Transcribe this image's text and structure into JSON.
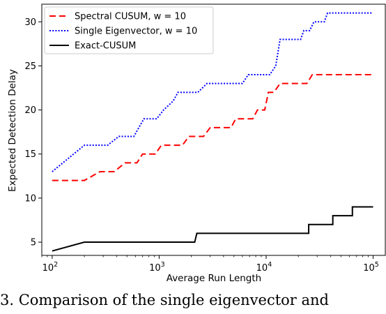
{
  "chart_data": {
    "type": "line",
    "title": "",
    "xlabel": "Average Run Length",
    "ylabel": "Expected Detection Delay",
    "x_scale": "log",
    "xlim": [
      80,
      130000
    ],
    "ylim": [
      3.5,
      32
    ],
    "x_ticks": [
      100,
      1000,
      10000,
      100000
    ],
    "x_tick_labels": [
      {
        "base": "10",
        "exp": "2"
      },
      {
        "base": "10",
        "exp": "3"
      },
      {
        "base": "10",
        "exp": "4"
      },
      {
        "base": "10",
        "exp": "5"
      }
    ],
    "y_ticks": [
      5,
      10,
      15,
      20,
      25,
      30
    ],
    "y_tick_labels": [
      "5",
      "10",
      "15",
      "20",
      "25",
      "30"
    ],
    "grid": false,
    "legend_position": "top-left",
    "series": [
      {
        "name": "Spectral CUSUM, w = 10",
        "color": "#ff0000",
        "style": "dashed",
        "points": [
          [
            100,
            12
          ],
          [
            200,
            12
          ],
          [
            280,
            13
          ],
          [
            380,
            13
          ],
          [
            480,
            14
          ],
          [
            620,
            14
          ],
          [
            700,
            15
          ],
          [
            920,
            15
          ],
          [
            1050,
            16
          ],
          [
            1650,
            16
          ],
          [
            1900,
            17
          ],
          [
            2600,
            17
          ],
          [
            3000,
            18
          ],
          [
            4700,
            18
          ],
          [
            5200,
            19
          ],
          [
            7500,
            19
          ],
          [
            8300,
            20
          ],
          [
            9700,
            20
          ],
          [
            10500,
            22
          ],
          [
            11800,
            22
          ],
          [
            13500,
            23
          ],
          [
            24000,
            23
          ],
          [
            27000,
            24
          ],
          [
            100000,
            24
          ]
        ]
      },
      {
        "name": "Single Eigenvector, w = 10",
        "color": "#0000ff",
        "style": "dotted",
        "points": [
          [
            100,
            13
          ],
          [
            200,
            16
          ],
          [
            330,
            16
          ],
          [
            420,
            17
          ],
          [
            580,
            17
          ],
          [
            720,
            19
          ],
          [
            950,
            19
          ],
          [
            1100,
            20
          ],
          [
            1350,
            21
          ],
          [
            1500,
            22
          ],
          [
            2300,
            22
          ],
          [
            2800,
            23
          ],
          [
            6000,
            23
          ],
          [
            6800,
            24
          ],
          [
            10800,
            24
          ],
          [
            12300,
            25
          ],
          [
            13500,
            28
          ],
          [
            21000,
            28
          ],
          [
            22500,
            29
          ],
          [
            25500,
            29
          ],
          [
            28000,
            30
          ],
          [
            35000,
            30
          ],
          [
            37500,
            31
          ],
          [
            100000,
            31
          ]
        ]
      },
      {
        "name": "Exact-CUSUM",
        "color": "#000000",
        "style": "solid",
        "points": [
          [
            100,
            4
          ],
          [
            200,
            5
          ],
          [
            2150,
            5
          ],
          [
            2250,
            6
          ],
          [
            25000,
            6
          ],
          [
            25000,
            7
          ],
          [
            42000,
            7
          ],
          [
            42000,
            8
          ],
          [
            64000,
            8
          ],
          [
            64000,
            9
          ],
          [
            100000,
            9
          ]
        ]
      }
    ]
  },
  "caption": "3. Comparison of the single eigenvector and"
}
